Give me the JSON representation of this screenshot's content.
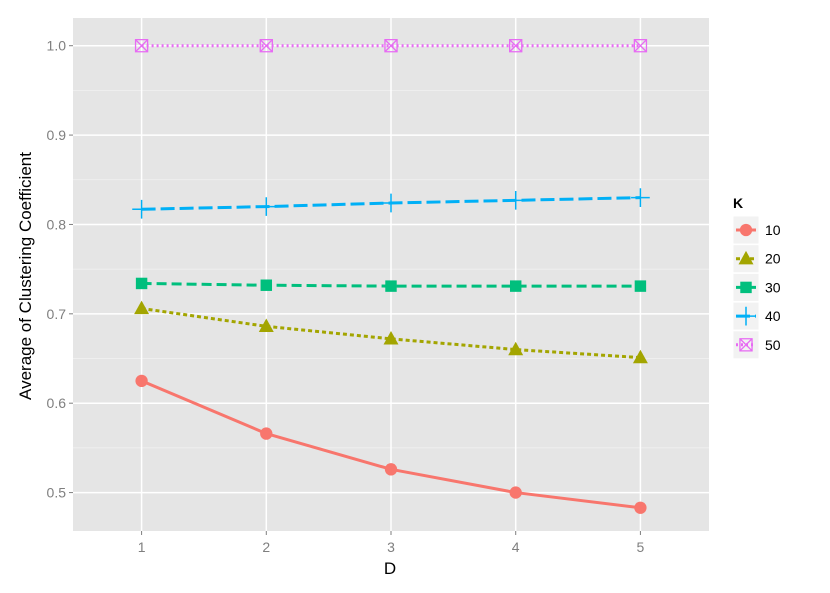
{
  "chart_data": {
    "type": "line",
    "xlabel": "D",
    "ylabel": "Average of Clustering Coefficient",
    "x": [
      1,
      2,
      3,
      4,
      5
    ],
    "xlim": [
      0.45,
      5.55
    ],
    "ylim": [
      0.457,
      1.031
    ],
    "yticks": [
      0.5,
      0.6,
      0.7,
      0.8,
      0.9,
      1.0
    ],
    "ytick_labels": [
      "0.5",
      "0.6",
      "0.7",
      "0.8",
      "0.9",
      "1.0"
    ],
    "xtick_labels": [
      "1",
      "2",
      "3",
      "4",
      "5"
    ],
    "grid": true,
    "legend": {
      "title": "K",
      "position": "right"
    },
    "series": [
      {
        "name": "10",
        "color": "#F8766D",
        "dash": "solid",
        "marker": "circle",
        "values": [
          0.625,
          0.566,
          0.526,
          0.5,
          0.483
        ]
      },
      {
        "name": "20",
        "color": "#A3A500",
        "dash": "dotted",
        "marker": "triangle",
        "values": [
          0.706,
          0.686,
          0.672,
          0.66,
          0.651
        ]
      },
      {
        "name": "30",
        "color": "#00BF7D",
        "dash": "dashed",
        "marker": "square",
        "values": [
          0.734,
          0.732,
          0.731,
          0.731,
          0.731
        ]
      },
      {
        "name": "40",
        "color": "#00B0F6",
        "dash": "longdash",
        "marker": "plus",
        "values": [
          0.817,
          0.82,
          0.824,
          0.827,
          0.83
        ]
      },
      {
        "name": "50",
        "color": "#E76BF3",
        "dash": "dotted-fine",
        "marker": "square-cross",
        "values": [
          1.0,
          1.0,
          1.0,
          1.0,
          1.0
        ]
      }
    ]
  }
}
